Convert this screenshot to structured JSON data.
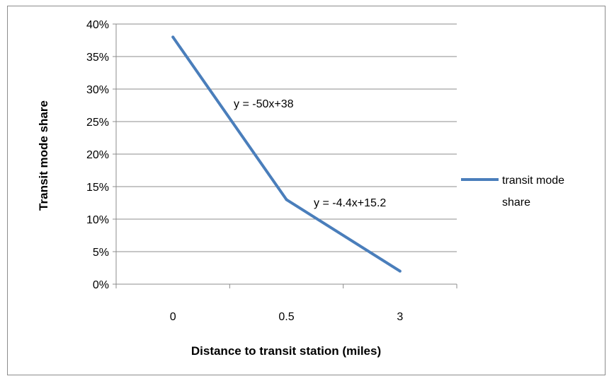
{
  "chart_data": {
    "type": "line",
    "categories": [
      "0",
      "0.5",
      "3"
    ],
    "series": [
      {
        "name": "transit mode share",
        "values": [
          38,
          13,
          2
        ],
        "color": "#4a7ebb"
      }
    ],
    "ylim": [
      0,
      40
    ],
    "yticks": [
      "0%",
      "5%",
      "10%",
      "15%",
      "20%",
      "25%",
      "30%",
      "35%",
      "40%"
    ],
    "xlabel": "Distance to transit station (miles)",
    "ylabel": "Transit mode share",
    "annotations": [
      "y = -50x+38",
      "y = -4.4x+15.2"
    ],
    "legend": {
      "position": "right",
      "lines": [
        "transit mode",
        "share"
      ]
    },
    "grid": true
  }
}
